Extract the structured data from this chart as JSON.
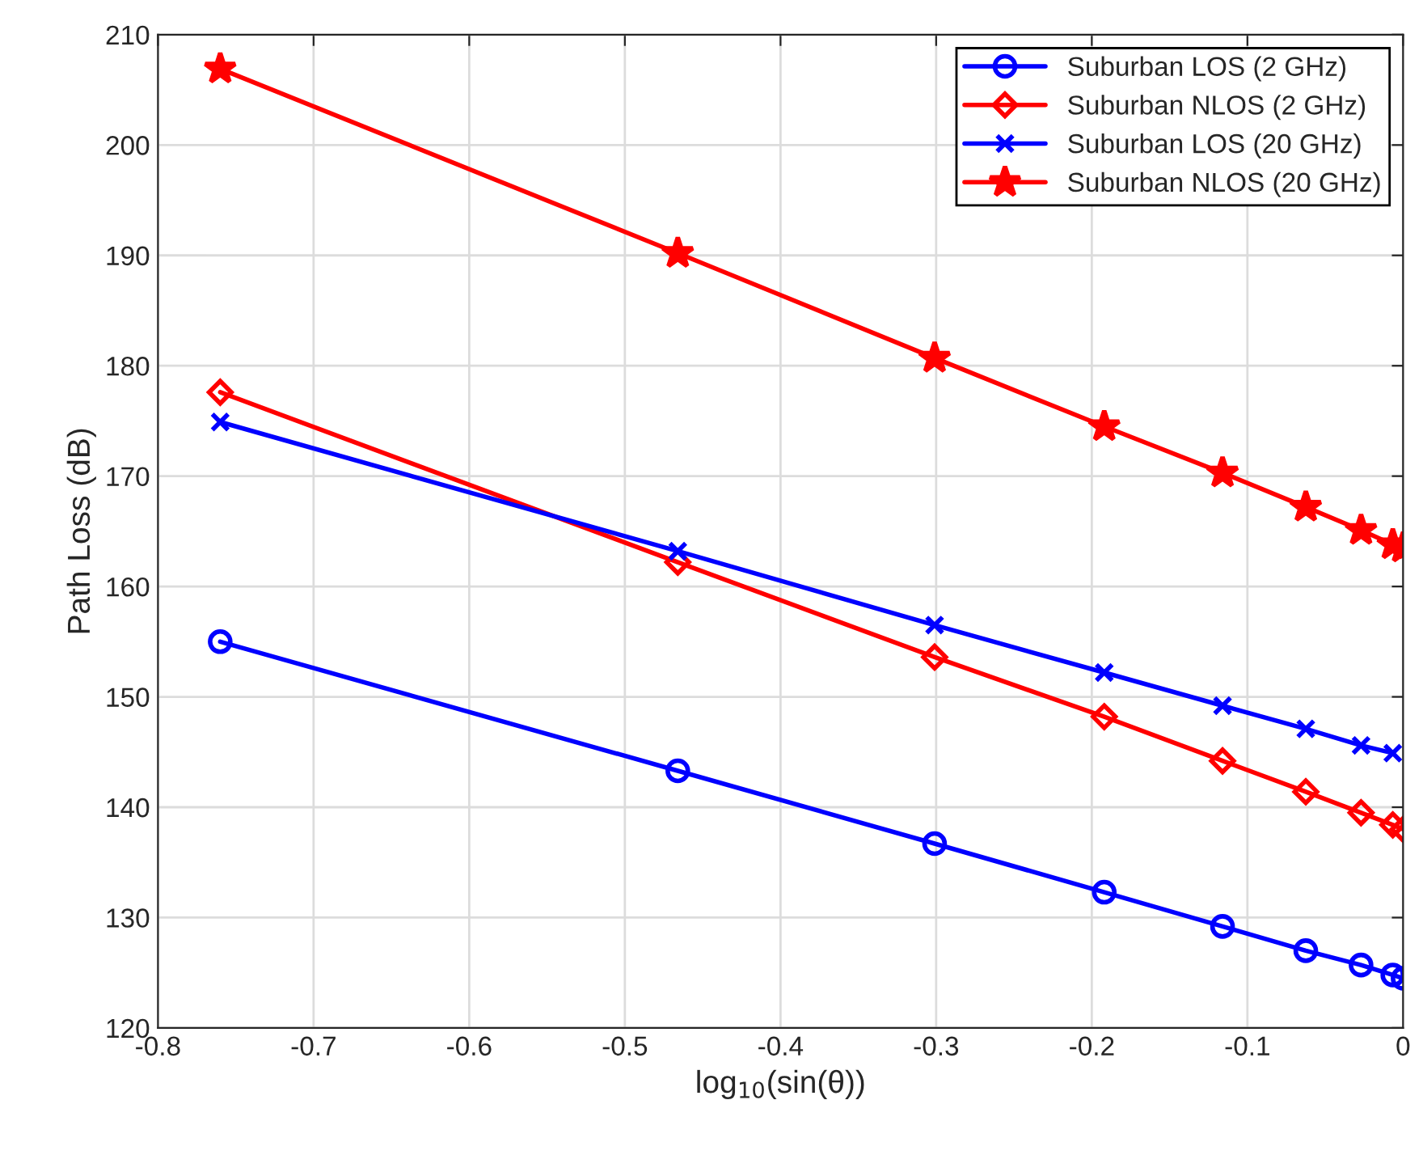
{
  "chart_data": {
    "type": "line",
    "xlabel": "log$_{10}$(sin(θ))",
    "ylabel": "Path Loss (dB)",
    "x": [
      -0.76,
      -0.466,
      -0.301,
      -0.192,
      -0.116,
      -0.0625,
      -0.027,
      -0.0066,
      0
    ],
    "series": [
      {
        "name": "Suburban LOS (2 GHz)",
        "color": "#0000ff",
        "marker": "circle",
        "values": [
          155.0,
          143.3,
          136.7,
          132.3,
          129.2,
          127.0,
          125.7,
          124.8,
          124.5
        ]
      },
      {
        "name": "Suburban NLOS (2 GHz)",
        "color": "#ff0000",
        "marker": "diamond",
        "values": [
          177.6,
          162.2,
          153.6,
          148.2,
          144.2,
          141.4,
          139.5,
          138.4,
          138.0
        ]
      },
      {
        "name": "Suburban LOS (20 GHz)",
        "color": "#0000ff",
        "marker": "cross",
        "values": [
          174.9,
          163.2,
          156.5,
          152.2,
          149.2,
          147.1,
          145.6,
          144.9,
          null
        ]
      },
      {
        "name": "Suburban NLOS (20 GHz)",
        "color": "#ff0000",
        "marker": "star",
        "values": [
          206.9,
          190.2,
          180.7,
          174.5,
          170.3,
          167.2,
          165.1,
          163.8,
          163.5
        ]
      }
    ],
    "xlim": [
      -0.8,
      0
    ],
    "xticks": [
      -0.8,
      -0.7,
      -0.6,
      -0.5,
      -0.4,
      -0.3,
      -0.2,
      -0.1,
      0
    ],
    "ylim": [
      120,
      210
    ],
    "yticks": [
      120,
      130,
      140,
      150,
      160,
      170,
      180,
      190,
      200,
      210
    ],
    "grid": true,
    "legend": "top right",
    "line_style": "solid"
  }
}
